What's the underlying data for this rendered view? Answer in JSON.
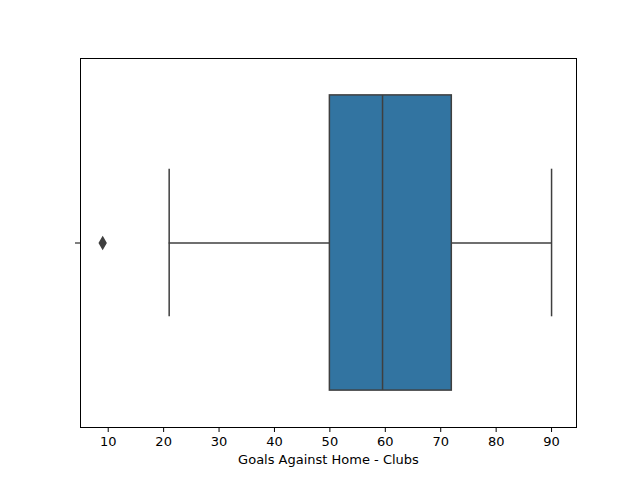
{
  "chart_data": {
    "type": "box",
    "xlabel": "Goals Against Home - Clubs",
    "stats": {
      "whislo": 21,
      "q1": 50,
      "med": 59.5,
      "q3": 72,
      "whishi": 90,
      "fliers": [
        9
      ]
    },
    "color": "#3274a1",
    "xlim": [
      5,
      94.5
    ],
    "xticks": [
      10,
      20,
      30,
      40,
      50,
      60,
      70,
      80,
      90
    ],
    "tick_labels": "x",
    "grid": false
  }
}
